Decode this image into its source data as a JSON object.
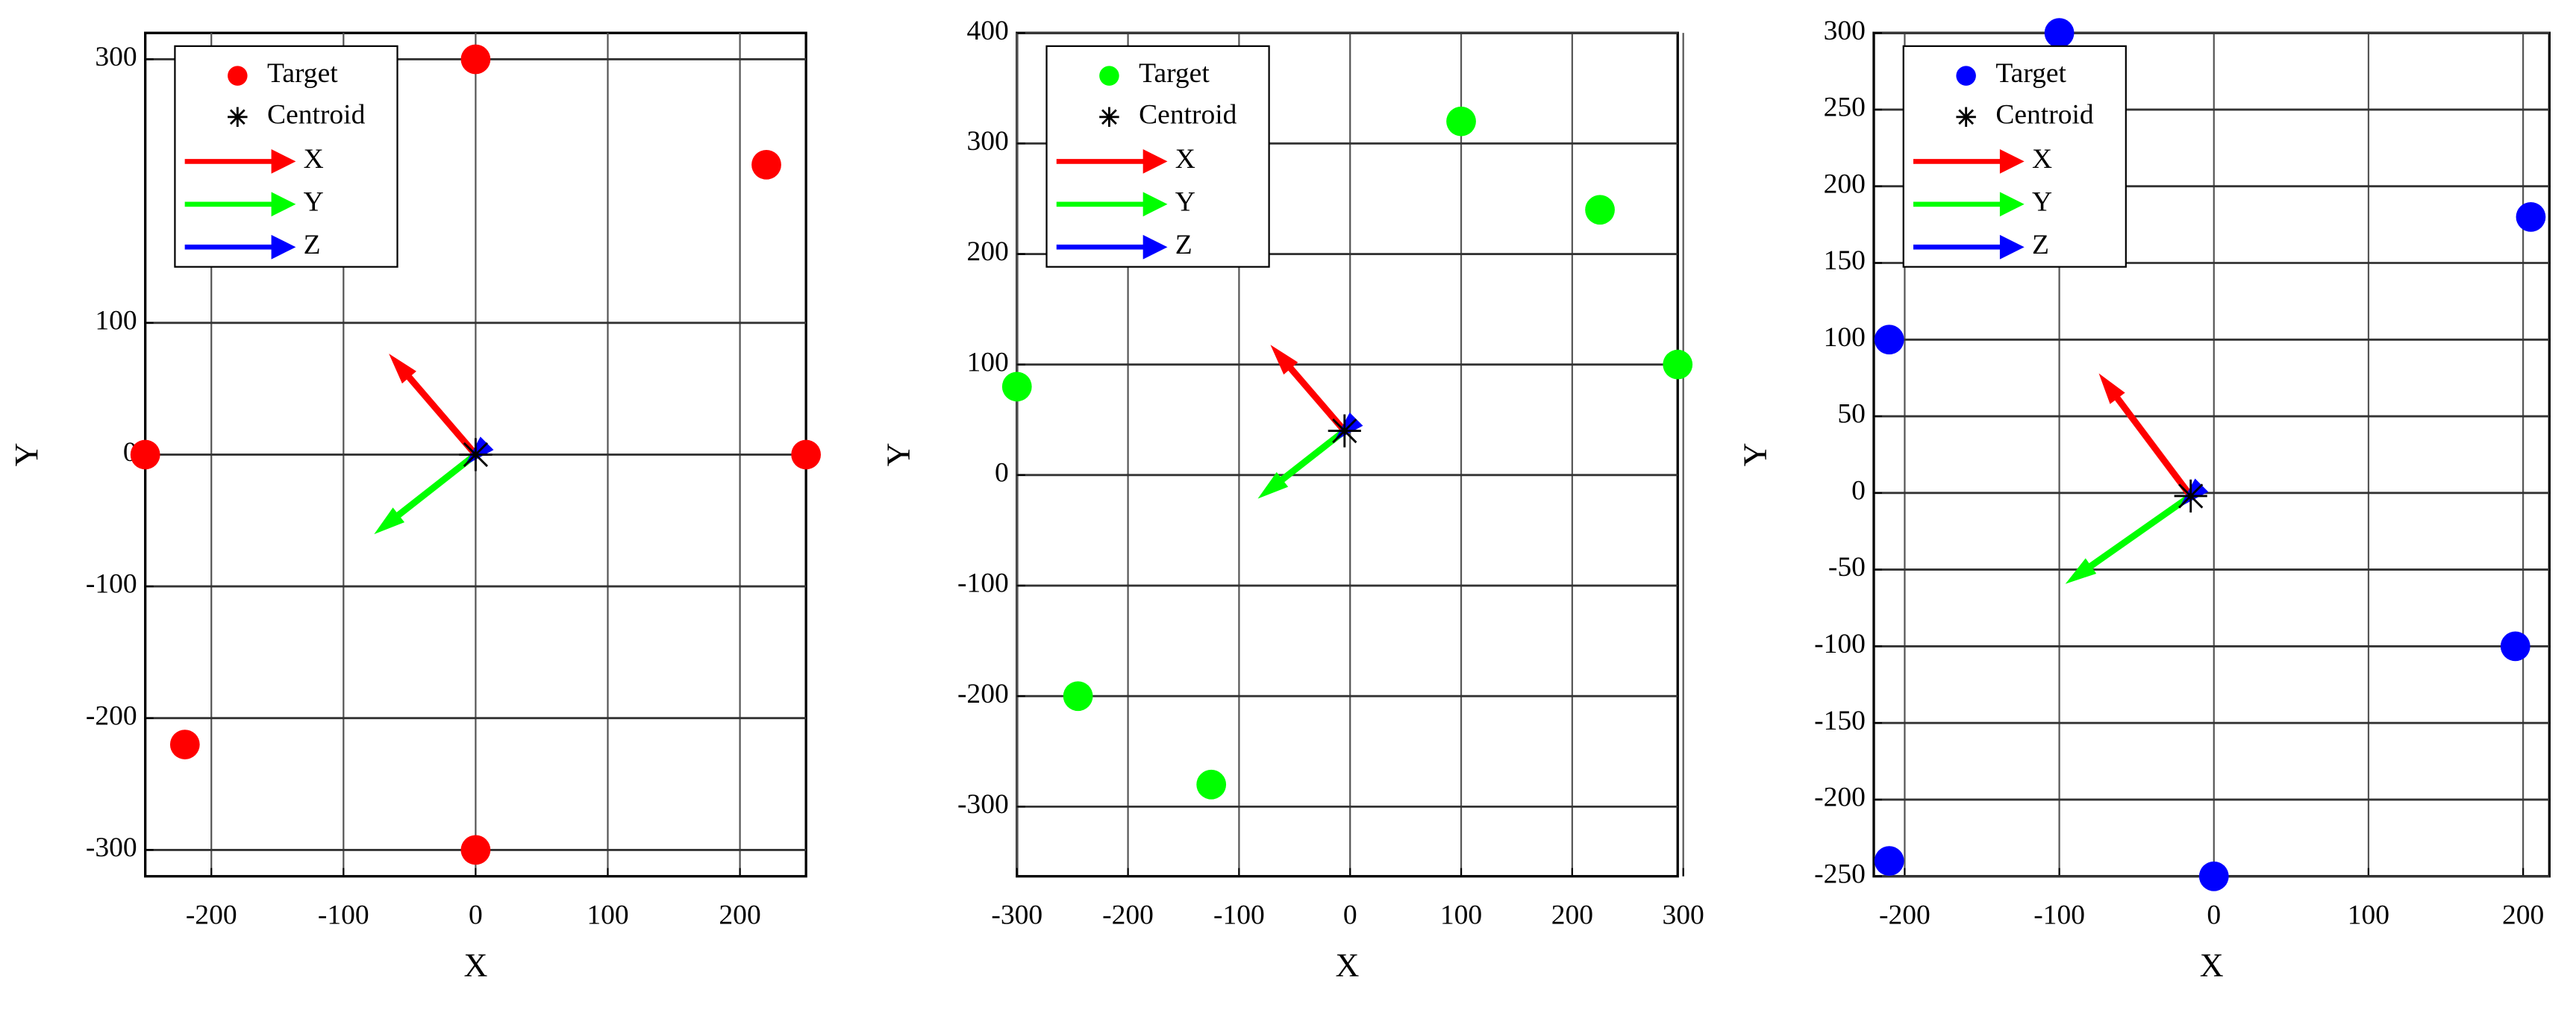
{
  "chart_data": [
    {
      "type": "scatter",
      "xlabel": "X",
      "ylabel": "Y",
      "xlim": [
        -250,
        250
      ],
      "ylim": [
        -320,
        320
      ],
      "xticks": [
        -200,
        -100,
        0,
        100,
        200
      ],
      "yticks": [
        -300,
        -200,
        -100,
        0,
        100,
        300
      ],
      "grid": true,
      "series": [
        {
          "name": "Target",
          "color": "#ff0000",
          "marker": "circle",
          "x": [
            0,
            220,
            -250,
            250,
            -220,
            0
          ],
          "y": [
            300,
            220,
            0,
            0,
            -220,
            -300
          ]
        },
        {
          "name": "Centroid",
          "color": "#000000",
          "marker": "star",
          "x": [
            0
          ],
          "y": [
            0
          ]
        }
      ],
      "arrows": [
        {
          "name": "X",
          "color": "#ff0000",
          "x": [
            0,
            -60
          ],
          "y": [
            0,
            70
          ]
        },
        {
          "name": "Y",
          "color": "#00ff00",
          "x": [
            0,
            -70
          ],
          "y": [
            0,
            -55
          ]
        },
        {
          "name": "Z",
          "color": "#0000ff",
          "x": [
            0,
            -2
          ],
          "y": [
            0,
            -2
          ]
        }
      ]
    },
    {
      "type": "scatter",
      "xlabel": "X",
      "ylabel": "Y",
      "xlim": [
        -300,
        295
      ],
      "ylim": [
        -363,
        400
      ],
      "xticks": [
        -300,
        -200,
        -100,
        0,
        100,
        200,
        300
      ],
      "yticks": [
        -300,
        -200,
        -100,
        0,
        100,
        200,
        300,
        400
      ],
      "grid": true,
      "series": [
        {
          "name": "Target",
          "color": "#00ff00",
          "marker": "circle",
          "x": [
            100,
            225,
            295,
            -300,
            -245,
            -125
          ],
          "y": [
            320,
            240,
            100,
            80,
            -200,
            -280
          ]
        },
        {
          "name": "Centroid",
          "color": "#000000",
          "marker": "star",
          "x": [
            -5
          ],
          "y": [
            40
          ]
        }
      ],
      "arrows": [
        {
          "name": "X",
          "color": "#ff0000",
          "x": [
            -5,
            -65
          ],
          "y": [
            40,
            110
          ]
        },
        {
          "name": "Y",
          "color": "#00ff00",
          "x": [
            -5,
            -75
          ],
          "y": [
            40,
            -15
          ]
        },
        {
          "name": "Z",
          "color": "#0000ff",
          "x": [
            -5,
            -7
          ],
          "y": [
            40,
            38
          ]
        }
      ]
    },
    {
      "type": "scatter",
      "xlabel": "X",
      "ylabel": "Y",
      "xlim": [
        -220,
        217
      ],
      "ylim": [
        -250,
        300
      ],
      "xticks": [
        -200,
        -100,
        0,
        100,
        200
      ],
      "yticks": [
        -250,
        -200,
        -150,
        -100,
        -50,
        0,
        50,
        100,
        150,
        200,
        250,
        300
      ],
      "grid": true,
      "series": [
        {
          "name": "Target",
          "color": "#0000ff",
          "marker": "circle",
          "x": [
            -100,
            205,
            -210,
            195,
            -210,
            0
          ],
          "y": [
            300,
            180,
            100,
            -100,
            -240,
            -250
          ]
        },
        {
          "name": "Centroid",
          "color": "#000000",
          "marker": "star",
          "x": [
            -15
          ],
          "y": [
            -2
          ]
        }
      ],
      "arrows": [
        {
          "name": "X",
          "color": "#ff0000",
          "x": [
            -15,
            -70
          ],
          "y": [
            -2,
            72
          ]
        },
        {
          "name": "Y",
          "color": "#00ff00",
          "x": [
            -15,
            -90
          ],
          "y": [
            -2,
            -55
          ]
        },
        {
          "name": "Z",
          "color": "#0000ff",
          "x": [
            -15,
            -17
          ],
          "y": [
            -2,
            -4
          ]
        }
      ]
    }
  ]
}
